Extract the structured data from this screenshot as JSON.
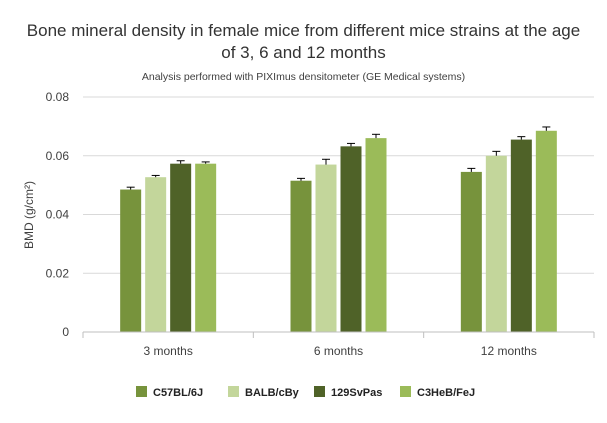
{
  "chart_data": {
    "type": "bar",
    "title": "Bone mineral density in female mice from different mice strains at the age of 3, 6 and 12 months",
    "title_lines": [
      "Bone mineral density in female mice from different mice strains at the age",
      "of 3, 6 and 12 months"
    ],
    "subtitle": "Analysis performed with PIXImus densitometer (GE Medical systems)",
    "xlabel": "",
    "ylabel": "BMD (g/cm²)",
    "ylim": [
      0,
      0.08
    ],
    "yticks": [
      0,
      0.02,
      0.04,
      0.06,
      0.08
    ],
    "ytick_labels": [
      "0",
      "0.02",
      "0.04",
      "0.06",
      "0.08"
    ],
    "grid": "horizontal",
    "legend_position": "bottom",
    "categories": [
      "3 months",
      "6 months",
      "12 months"
    ],
    "series": [
      {
        "name": "C57BL/6J",
        "color": "#77933c",
        "values": [
          0.0485,
          0.0515,
          0.0545
        ],
        "errors": [
          0.0008,
          0.0008,
          0.0012
        ]
      },
      {
        "name": "BALB/cBy",
        "color": "#c3d69b",
        "values": [
          0.0527,
          0.057,
          0.06
        ],
        "errors": [
          0.0006,
          0.0018,
          0.0015
        ]
      },
      {
        "name": "129SvPas",
        "color": "#4f6228",
        "values": [
          0.0573,
          0.0632,
          0.0655
        ],
        "errors": [
          0.001,
          0.001,
          0.001
        ]
      },
      {
        "name": "C3HeB/FeJ",
        "color": "#9bbb59",
        "values": [
          0.0573,
          0.066,
          0.0685
        ],
        "errors": [
          0.0006,
          0.0013,
          0.0013
        ]
      }
    ]
  }
}
